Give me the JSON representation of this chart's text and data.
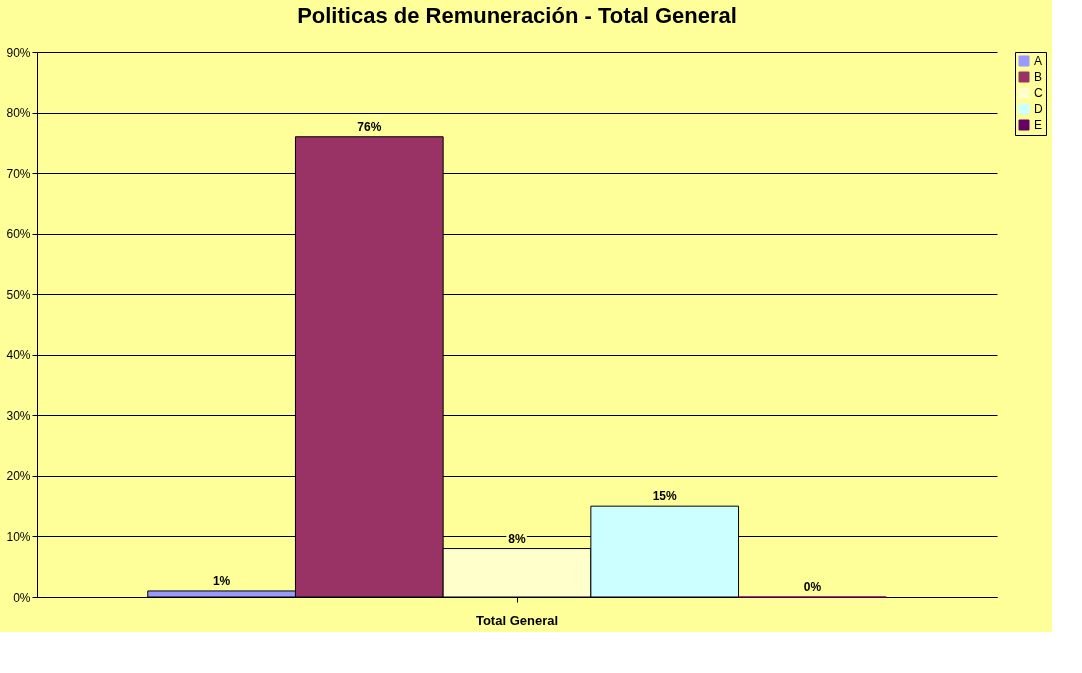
{
  "chart_data": {
    "type": "bar",
    "title": "Politicas de Remuneración - Total General",
    "categories": [
      "Total General"
    ],
    "series": [
      {
        "name": "A",
        "color": "#9999ff",
        "values": [
          1
        ],
        "value_labels": [
          "1%"
        ]
      },
      {
        "name": "B",
        "color": "#993366",
        "values": [
          76
        ],
        "value_labels": [
          "76%"
        ]
      },
      {
        "name": "C",
        "color": "#ffffcc",
        "values": [
          8
        ],
        "value_labels": [
          "8%"
        ]
      },
      {
        "name": "D",
        "color": "#ccffff",
        "values": [
          15
        ],
        "value_labels": [
          "15%"
        ]
      },
      {
        "name": "E",
        "color": "#660066",
        "values": [
          0
        ],
        "value_labels": [
          "0%"
        ]
      }
    ],
    "ylim": [
      0,
      90
    ],
    "yticks": [
      {
        "value": 0,
        "label": "0%"
      },
      {
        "value": 10,
        "label": "10%"
      },
      {
        "value": 20,
        "label": "20%"
      },
      {
        "value": 30,
        "label": "30%"
      },
      {
        "value": 40,
        "label": "40%"
      },
      {
        "value": 50,
        "label": "50%"
      },
      {
        "value": 60,
        "label": "60%"
      },
      {
        "value": 70,
        "label": "70%"
      },
      {
        "value": 80,
        "label": "80%"
      },
      {
        "value": 90,
        "label": "90%"
      }
    ],
    "grid": "y",
    "legend": "right"
  }
}
